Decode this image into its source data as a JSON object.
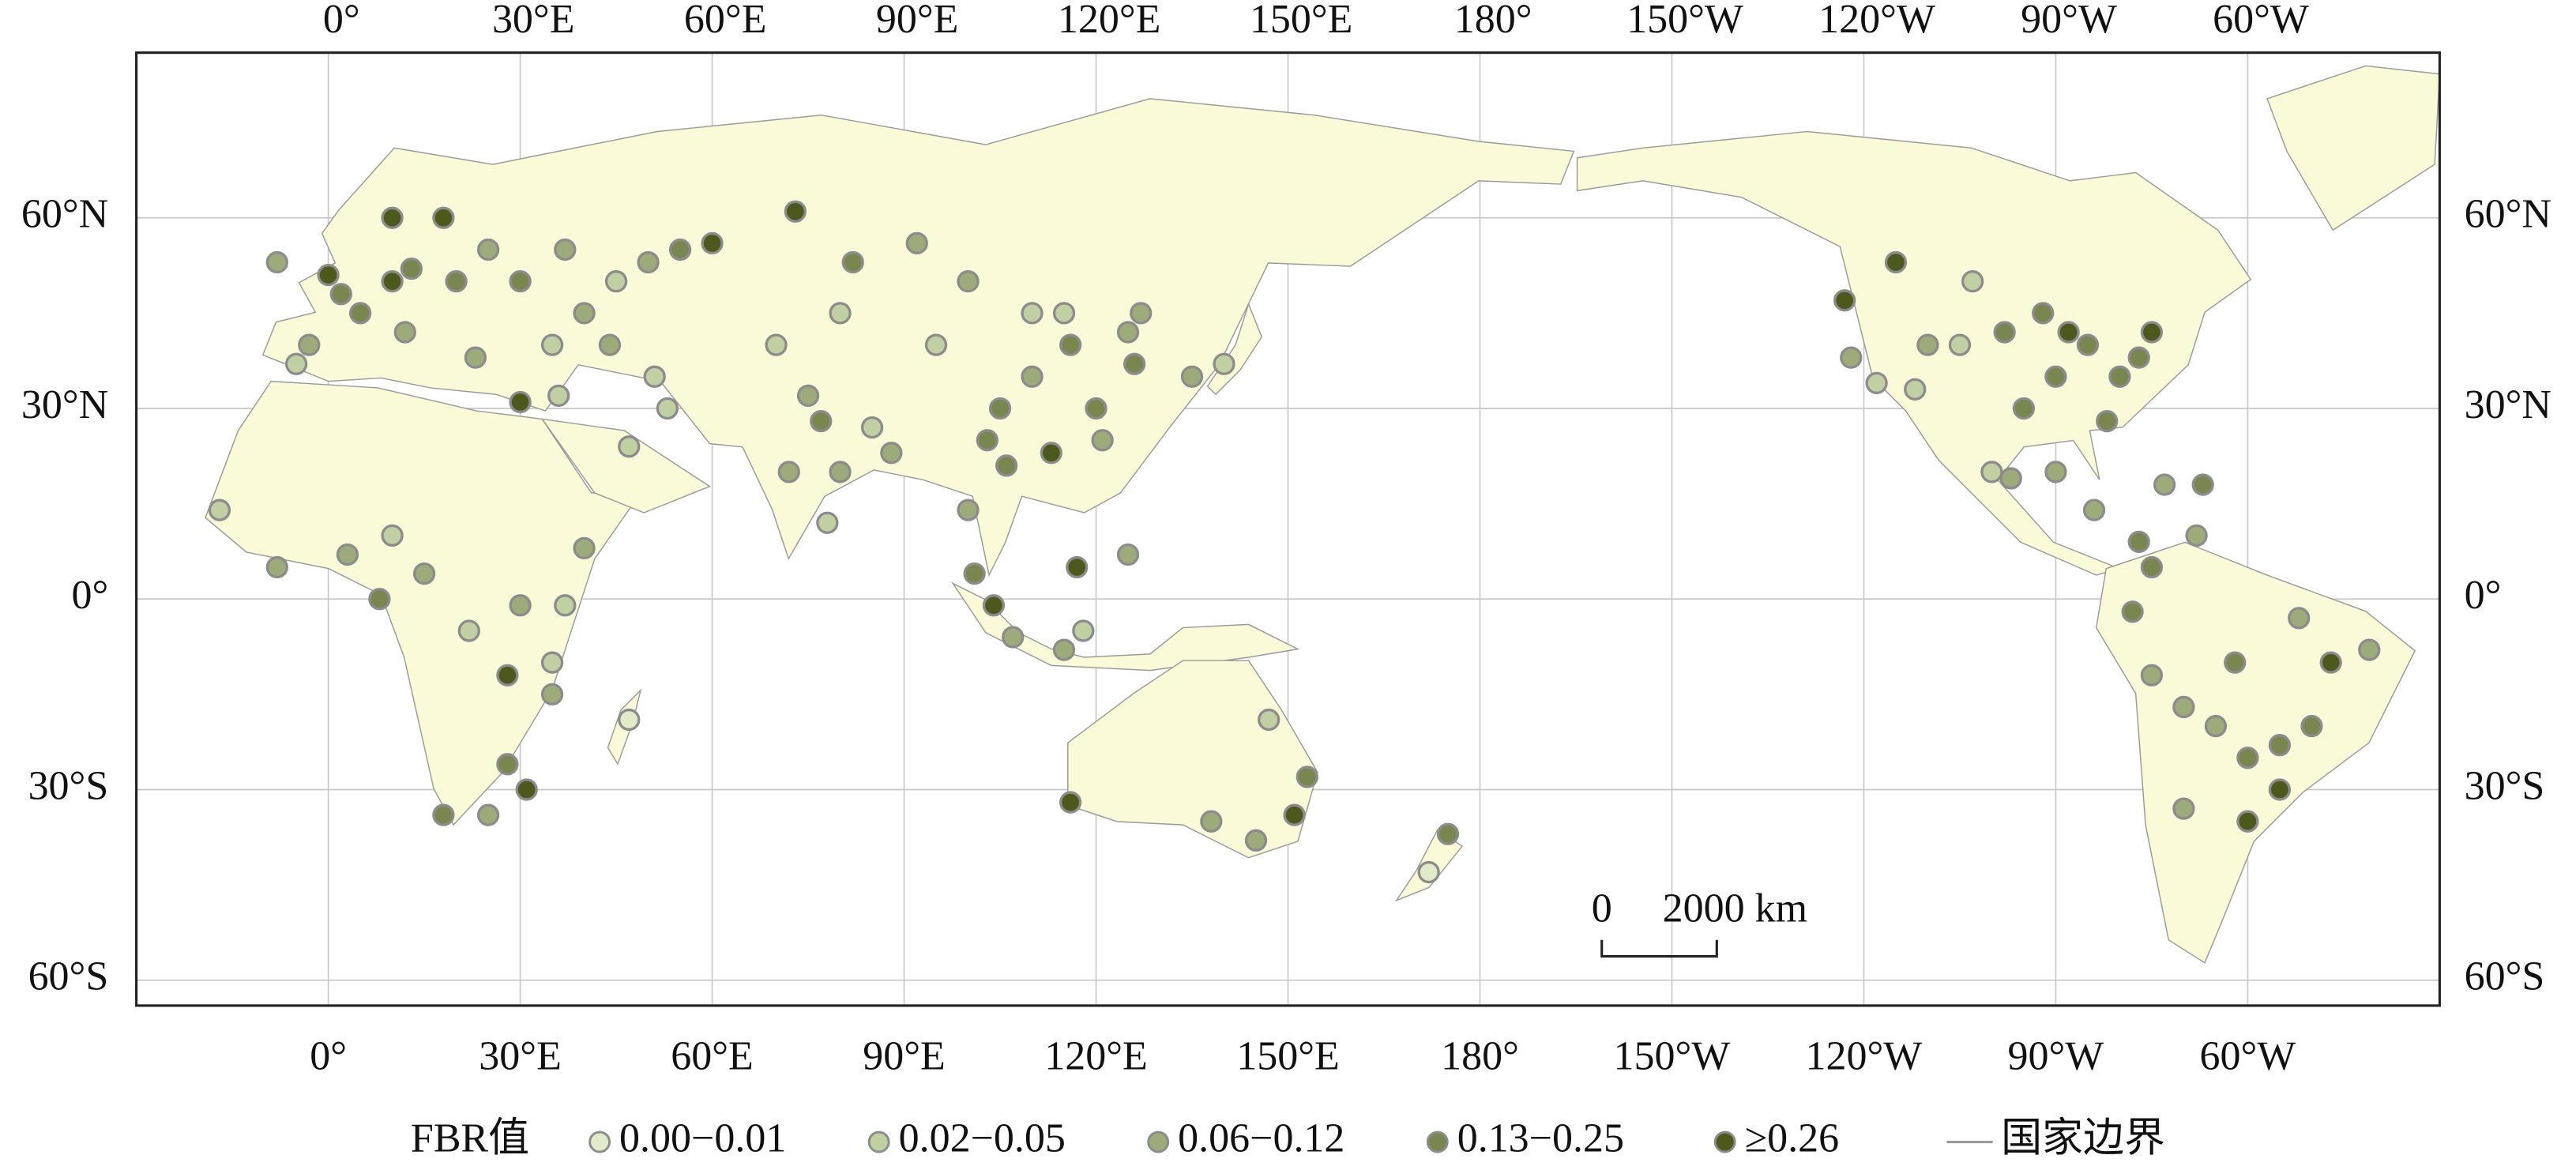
{
  "map": {
    "lon_extent": [
      -30,
      330
    ],
    "lat_extent": [
      -64,
      86
    ],
    "grid": true,
    "lon_ticks": [
      {
        "value": 0,
        "label": "0°"
      },
      {
        "value": 30,
        "label": "30°E"
      },
      {
        "value": 60,
        "label": "60°E"
      },
      {
        "value": 90,
        "label": "90°E"
      },
      {
        "value": 120,
        "label": "120°E"
      },
      {
        "value": 150,
        "label": "150°E"
      },
      {
        "value": 180,
        "label": "180°"
      },
      {
        "value": 210,
        "label": "150°W"
      },
      {
        "value": 240,
        "label": "120°W"
      },
      {
        "value": 270,
        "label": "90°W"
      },
      {
        "value": 300,
        "label": "60°W"
      }
    ],
    "lat_ticks": [
      {
        "value": -60,
        "label": "60°S"
      },
      {
        "value": -30,
        "label": "30°S"
      },
      {
        "value": 0,
        "label": "0°"
      },
      {
        "value": 30,
        "label": "30°N"
      },
      {
        "value": 60,
        "label": "60°N"
      }
    ],
    "legend": {
      "title": "FBR值",
      "classes": [
        {
          "label": "0.00−0.01",
          "color": "#e2ebc8"
        },
        {
          "label": "0.02−0.05",
          "color": "#c0d0a2"
        },
        {
          "label": "0.06−0.12",
          "color": "#9dab7b"
        },
        {
          "label": "0.13−0.25",
          "color": "#7a8650"
        },
        {
          "label": "≥0.26",
          "color": "#4d581c"
        }
      ],
      "boundary_label": "国家边界"
    },
    "scale_bar": {
      "start": "0",
      "end": "2000 km"
    },
    "points": [
      [
        0,
        51,
        4
      ],
      [
        2,
        48,
        3
      ],
      [
        -3,
        40,
        2
      ],
      [
        5,
        45,
        3
      ],
      [
        10,
        50,
        4
      ],
      [
        13,
        52,
        3
      ],
      [
        20,
        50,
        3
      ],
      [
        25,
        55,
        2
      ],
      [
        18,
        60,
        4
      ],
      [
        10,
        60,
        4
      ],
      [
        -8,
        53,
        2
      ],
      [
        -5,
        37,
        1
      ],
      [
        12,
        42,
        2
      ],
      [
        23,
        38,
        2
      ],
      [
        30,
        50,
        3
      ],
      [
        37,
        55,
        2
      ],
      [
        45,
        50,
        1
      ],
      [
        40,
        45,
        2
      ],
      [
        50,
        53,
        2
      ],
      [
        55,
        55,
        3
      ],
      [
        60,
        56,
        4
      ],
      [
        73,
        61,
        4
      ],
      [
        82,
        53,
        3
      ],
      [
        92,
        56,
        2
      ],
      [
        35,
        40,
        1
      ],
      [
        44,
        40,
        2
      ],
      [
        51,
        35,
        1
      ],
      [
        53,
        30,
        1
      ],
      [
        47,
        24,
        1
      ],
      [
        36,
        32,
        1
      ],
      [
        30,
        31,
        4
      ],
      [
        70,
        40,
        1
      ],
      [
        75,
        32,
        2
      ],
      [
        77,
        28,
        3
      ],
      [
        80,
        20,
        2
      ],
      [
        78,
        12,
        1
      ],
      [
        72,
        20,
        2
      ],
      [
        88,
        23,
        2
      ],
      [
        85,
        27,
        1
      ],
      [
        100,
        14,
        2
      ],
      [
        106,
        21,
        3
      ],
      [
        105,
        30,
        3
      ],
      [
        110,
        35,
        2
      ],
      [
        116,
        40,
        3
      ],
      [
        120,
        30,
        3
      ],
      [
        113,
        23,
        4
      ],
      [
        121,
        25,
        2
      ],
      [
        126,
        37,
        3
      ],
      [
        127,
        45,
        2
      ],
      [
        135,
        35,
        2
      ],
      [
        140,
        37,
        1
      ],
      [
        110,
        45,
        1
      ],
      [
        101,
        4,
        3
      ],
      [
        107,
        -6,
        2
      ],
      [
        115,
        -8,
        2
      ],
      [
        117,
        5,
        4
      ],
      [
        125,
        7,
        2
      ],
      [
        104,
        -1,
        4
      ],
      [
        95,
        40,
        1
      ],
      [
        80,
        45,
        1
      ],
      [
        100,
        50,
        2
      ],
      [
        115,
        45,
        1
      ],
      [
        125,
        42,
        2
      ],
      [
        103,
        25,
        3
      ],
      [
        118,
        -5,
        1
      ],
      [
        -17,
        14,
        1
      ],
      [
        -8,
        5,
        2
      ],
      [
        3,
        7,
        2
      ],
      [
        10,
        10,
        1
      ],
      [
        15,
        4,
        2
      ],
      [
        30,
        -1,
        2
      ],
      [
        37,
        -1,
        1
      ],
      [
        40,
        8,
        2
      ],
      [
        28,
        -12,
        4
      ],
      [
        35,
        -15,
        2
      ],
      [
        28,
        -26,
        3
      ],
      [
        18,
        -34,
        3
      ],
      [
        25,
        -34,
        2
      ],
      [
        31,
        -30,
        4
      ],
      [
        47,
        -19,
        0
      ],
      [
        35,
        -10,
        1
      ],
      [
        8,
        0,
        3
      ],
      [
        22,
        -5,
        1
      ],
      [
        116,
        -32,
        4
      ],
      [
        151,
        -34,
        4
      ],
      [
        153,
        -28,
        3
      ],
      [
        145,
        -38,
        2
      ],
      [
        138,
        -35,
        2
      ],
      [
        147,
        -19,
        1
      ],
      [
        175,
        -37,
        3
      ],
      [
        172,
        -43,
        0
      ],
      [
        237,
        47,
        4
      ],
      [
        238,
        38,
        2
      ],
      [
        242,
        34,
        1
      ],
      [
        248,
        33,
        1
      ],
      [
        255,
        40,
        1
      ],
      [
        265,
        30,
        3
      ],
      [
        270,
        35,
        3
      ],
      [
        275,
        40,
        3
      ],
      [
        280,
        35,
        3
      ],
      [
        285,
        42,
        4
      ],
      [
        283,
        38,
        3
      ],
      [
        278,
        28,
        3
      ],
      [
        262,
        42,
        3
      ],
      [
        268,
        45,
        3
      ],
      [
        272,
        42,
        4
      ],
      [
        257,
        50,
        1
      ],
      [
        245,
        53,
        4
      ],
      [
        250,
        40,
        2
      ],
      [
        260,
        20,
        1
      ],
      [
        263,
        19,
        2
      ],
      [
        270,
        20,
        2
      ],
      [
        276,
        14,
        2
      ],
      [
        283,
        9,
        3
      ],
      [
        287,
        18,
        2
      ],
      [
        293,
        18,
        3
      ],
      [
        292,
        10,
        2
      ],
      [
        285,
        5,
        3
      ],
      [
        282,
        -2,
        3
      ],
      [
        285,
        -12,
        2
      ],
      [
        290,
        -17,
        2
      ],
      [
        295,
        -20,
        2
      ],
      [
        300,
        -25,
        3
      ],
      [
        305,
        -23,
        3
      ],
      [
        310,
        -20,
        3
      ],
      [
        313,
        -10,
        4
      ],
      [
        319,
        -8,
        2
      ],
      [
        298,
        -10,
        3
      ],
      [
        305,
        -30,
        4
      ],
      [
        290,
        -33,
        2
      ],
      [
        300,
        -35,
        4
      ],
      [
        308,
        -3,
        2
      ]
    ]
  }
}
